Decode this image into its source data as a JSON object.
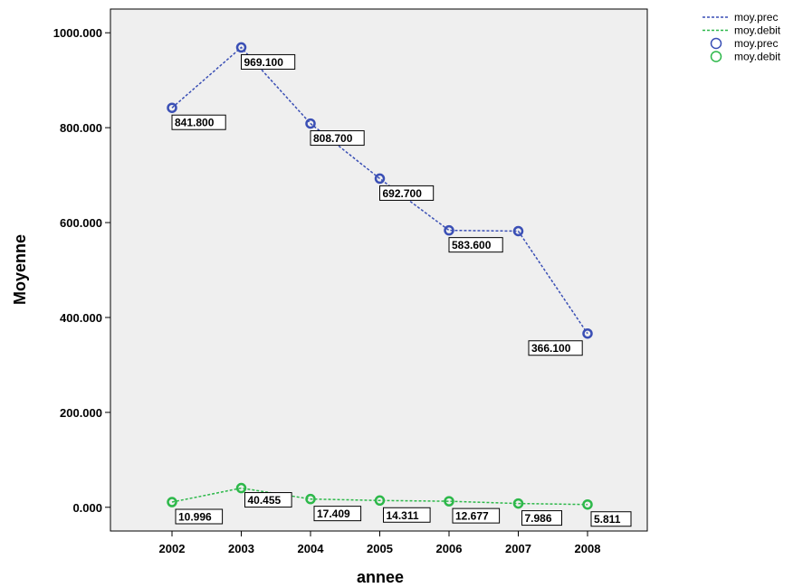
{
  "chart_data": {
    "type": "line",
    "title": "",
    "xlabel": "annee",
    "ylabel": "Moyenne",
    "x": [
      "2002",
      "2003",
      "2004",
      "2005",
      "2006",
      "2007",
      "2008"
    ],
    "ylim": [
      -50,
      1050
    ],
    "yticks": [
      0,
      200,
      400,
      600,
      800,
      1000
    ],
    "ytick_labels": [
      "0.000",
      "200.000",
      "400.000",
      "600.000",
      "800.000",
      "1000.000"
    ],
    "grid": false,
    "legend_position": "top-right, outside plot",
    "series": [
      {
        "name": "moy.prec",
        "color": "#3a4fb5",
        "values": [
          841.8,
          969.1,
          808.7,
          692.7,
          583.6,
          582,
          366.1
        ],
        "labels": [
          "841.800",
          "969.100",
          "808.700",
          "692.700",
          "583.600",
          null,
          "366.100"
        ]
      },
      {
        "name": "moy.debit",
        "color": "#2db84a",
        "values": [
          10.996,
          40.455,
          17.409,
          14.311,
          12.677,
          7.986,
          5.811
        ],
        "labels": [
          "10.996",
          "40.455",
          "17.409",
          "14.311",
          "12.677",
          "7.986",
          "5.811"
        ]
      }
    ],
    "legend": [
      {
        "label": "moy.prec",
        "kind": "line",
        "color": "#3a4fb5"
      },
      {
        "label": "moy.debit",
        "kind": "line",
        "color": "#2db84a"
      },
      {
        "label": "moy.prec",
        "kind": "marker",
        "color": "#3a4fb5"
      },
      {
        "label": "moy.debit",
        "kind": "marker",
        "color": "#2db84a"
      }
    ]
  }
}
